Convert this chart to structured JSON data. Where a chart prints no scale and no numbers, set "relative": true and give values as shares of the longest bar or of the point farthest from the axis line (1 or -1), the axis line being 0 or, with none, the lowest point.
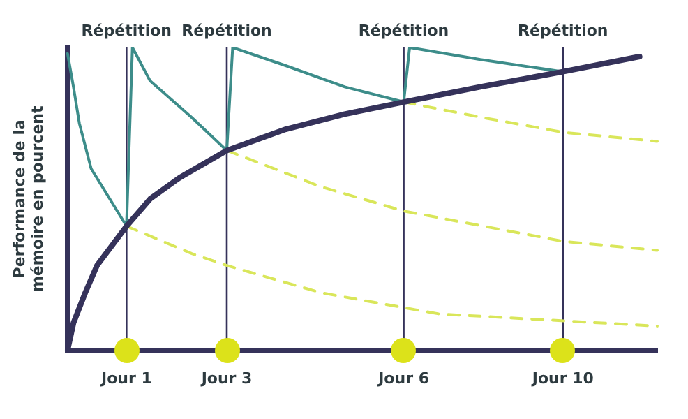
{
  "chart_data": {
    "type": "line",
    "relative": true,
    "ylabel": "Performance de la mémoire en pourcent",
    "categories": [
      null,
      null,
      null,
      null,
      null,
      null,
      null,
      null,
      null,
      null,
      "Jour 1",
      null,
      null,
      null,
      null,
      null,
      null,
      null,
      null,
      null,
      null,
      null,
      null,
      null,
      null,
      null,
      null,
      "Jour 3",
      null,
      null,
      null,
      null,
      null,
      null,
      null,
      null,
      null,
      null,
      null,
      null,
      null,
      null,
      null,
      null,
      null,
      null,
      null,
      null,
      null,
      null,
      null,
      null,
      null,
      null,
      null,
      null,
      null,
      "Jour 6",
      null,
      null,
      null,
      null,
      null,
      null,
      null,
      null,
      null,
      null,
      null,
      null,
      null,
      null,
      null,
      null,
      null,
      null,
      null,
      null,
      null,
      null,
      null,
      null,
      null,
      null,
      "Jour 10",
      null,
      null,
      null,
      null,
      null,
      null,
      null,
      null,
      null,
      null,
      null,
      null,
      null,
      null,
      null,
      null
    ],
    "grid": false,
    "legend": false,
    "marker": "none",
    "ref_lines": [
      {
        "axis": "x",
        "value": "Jour 1",
        "label": "Répétition",
        "color": "#35325a"
      },
      {
        "axis": "x",
        "value": "Jour 3",
        "label": "Répétition",
        "color": "#35325a"
      },
      {
        "axis": "x",
        "value": "Jour 6",
        "label": "Répétition",
        "color": "#35325a"
      },
      {
        "axis": "x",
        "value": "Jour 10",
        "label": "Répétition",
        "color": "#35325a"
      }
    ],
    "series": [
      {
        "color": "#d9e65a",
        "line_style": "dashed",
        "values": [
          null,
          null,
          null,
          null,
          null,
          null,
          null,
          null,
          null,
          null,
          0.41,
          null,
          null,
          null,
          null,
          null,
          null,
          null,
          null,
          null,
          null,
          0.32,
          null,
          null,
          null,
          null,
          null,
          0.28,
          null,
          null,
          null,
          null,
          null,
          null,
          null,
          null,
          null,
          null,
          null,
          null,
          null,
          null,
          null,
          0.19,
          null,
          null,
          null,
          null,
          null,
          null,
          null,
          null,
          null,
          null,
          null,
          null,
          null,
          null,
          null,
          null,
          null,
          null,
          null,
          0.12,
          null,
          null,
          null,
          null,
          null,
          null,
          null,
          null,
          null,
          null,
          null,
          null,
          null,
          null,
          null,
          null,
          null,
          null,
          null,
          null,
          null,
          null,
          null,
          null,
          null,
          null,
          null,
          null,
          null,
          null,
          null,
          null,
          null,
          null,
          null,
          null,
          0.08
        ]
      },
      {
        "color": "#d9e65a",
        "line_style": "dashed",
        "values": [
          null,
          null,
          null,
          null,
          null,
          null,
          null,
          null,
          null,
          null,
          null,
          null,
          null,
          null,
          null,
          null,
          null,
          null,
          null,
          null,
          null,
          null,
          null,
          null,
          null,
          null,
          null,
          0.66,
          null,
          null,
          null,
          null,
          null,
          null,
          null,
          null,
          null,
          null,
          null,
          null,
          null,
          null,
          null,
          0.54,
          null,
          null,
          null,
          null,
          null,
          null,
          null,
          null,
          null,
          null,
          null,
          null,
          null,
          0.46,
          null,
          null,
          null,
          null,
          null,
          null,
          null,
          null,
          null,
          null,
          null,
          null,
          null,
          null,
          null,
          null,
          null,
          null,
          null,
          null,
          null,
          null,
          null,
          null,
          null,
          null,
          0.36,
          null,
          null,
          null,
          null,
          null,
          null,
          null,
          null,
          null,
          null,
          null,
          null,
          null,
          null,
          null,
          0.33
        ]
      },
      {
        "color": "#d9e65a",
        "line_style": "dashed",
        "values": [
          null,
          null,
          null,
          null,
          null,
          null,
          null,
          null,
          null,
          null,
          null,
          null,
          null,
          null,
          null,
          null,
          null,
          null,
          null,
          null,
          null,
          null,
          null,
          null,
          null,
          null,
          null,
          null,
          null,
          null,
          null,
          null,
          null,
          null,
          null,
          null,
          null,
          null,
          null,
          null,
          null,
          null,
          null,
          null,
          null,
          null,
          null,
          null,
          null,
          null,
          null,
          null,
          null,
          null,
          null,
          null,
          null,
          0.82,
          null,
          null,
          null,
          null,
          null,
          null,
          null,
          null,
          null,
          null,
          null,
          null,
          0.77,
          null,
          null,
          null,
          null,
          null,
          null,
          null,
          null,
          null,
          null,
          null,
          null,
          null,
          0.72,
          null,
          null,
          null,
          null,
          null,
          null,
          null,
          null,
          null,
          null,
          null,
          null,
          null,
          null,
          null,
          0.69
        ]
      },
      {
        "color": "#3d8d8a",
        "line_style": "solid",
        "values": [
          0.98,
          0.87,
          0.75,
          null,
          0.6,
          null,
          null,
          null,
          null,
          null,
          0.41,
          1.0,
          null,
          null,
          0.89,
          null,
          null,
          null,
          null,
          null,
          null,
          0.77,
          null,
          null,
          null,
          null,
          null,
          0.66,
          1.0,
          null,
          null,
          null,
          null,
          null,
          null,
          null,
          null,
          0.94,
          null,
          null,
          null,
          null,
          null,
          null,
          null,
          null,
          null,
          0.87,
          null,
          null,
          null,
          null,
          null,
          null,
          null,
          null,
          null,
          0.82,
          1.0,
          null,
          null,
          null,
          null,
          null,
          null,
          null,
          null,
          null,
          null,
          null,
          0.96,
          null,
          null,
          null,
          null,
          null,
          null,
          null,
          null,
          null,
          null,
          null,
          null,
          null,
          0.92,
          null,
          null,
          null,
          null,
          null,
          null,
          null,
          null,
          null,
          null,
          null,
          null,
          null,
          null,
          null,
          null
        ]
      },
      {
        "color": "#35325a",
        "line_style": "solid",
        "values": [
          0,
          0.09,
          null,
          0.19,
          null,
          0.28,
          null,
          null,
          null,
          null,
          0.41,
          null,
          null,
          null,
          0.5,
          null,
          null,
          null,
          null,
          0.57,
          null,
          null,
          null,
          null,
          null,
          null,
          null,
          0.66,
          null,
          null,
          null,
          null,
          null,
          null,
          null,
          null,
          null,
          0.73,
          null,
          null,
          null,
          null,
          null,
          null,
          null,
          null,
          null,
          0.78,
          null,
          null,
          null,
          null,
          null,
          null,
          null,
          null,
          null,
          0.82,
          null,
          null,
          null,
          null,
          null,
          null,
          null,
          null,
          null,
          null,
          null,
          null,
          0.87,
          null,
          null,
          null,
          null,
          null,
          null,
          null,
          null,
          null,
          null,
          null,
          null,
          null,
          0.92,
          null,
          null,
          null,
          null,
          null,
          null,
          null,
          null,
          null,
          null,
          null,
          null,
          0.97,
          null,
          null,
          null
        ]
      }
    ]
  }
}
